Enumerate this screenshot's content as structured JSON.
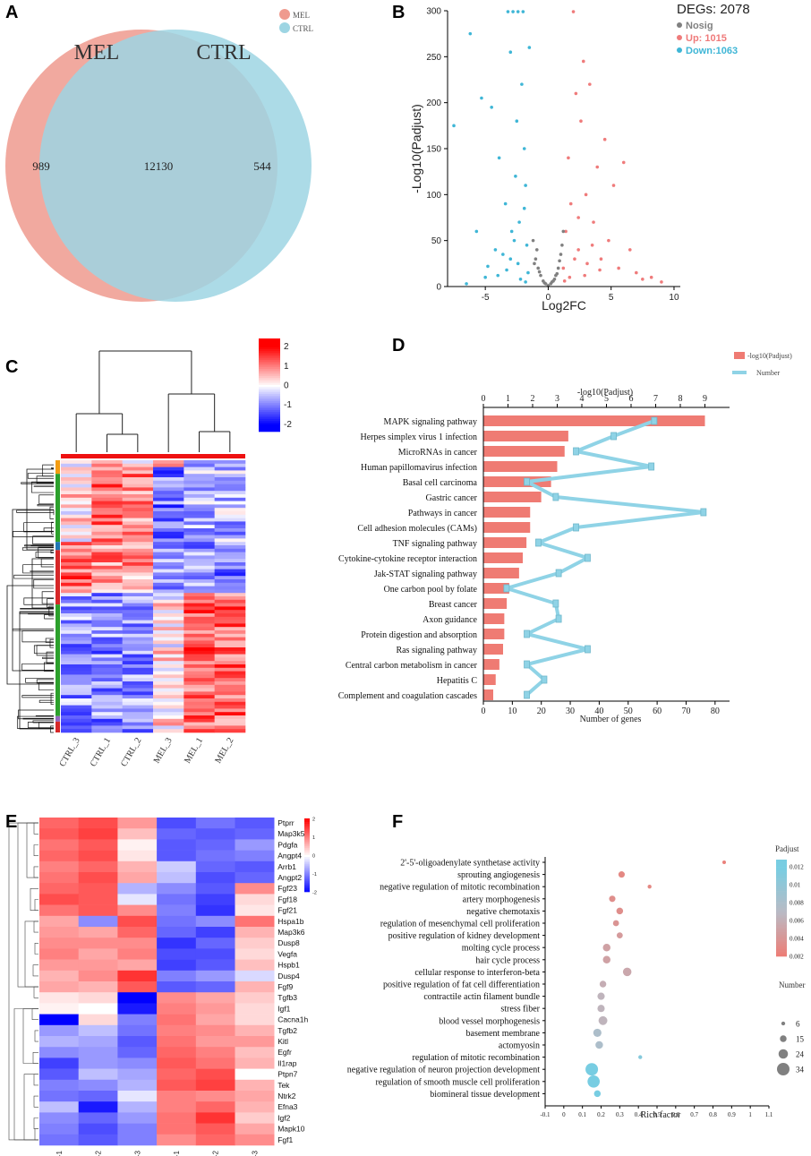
{
  "panels": {
    "a": "A",
    "b": "B",
    "c": "C",
    "d": "D",
    "e": "E",
    "f": "F"
  },
  "venn": {
    "title_left": "MEL",
    "title_right": "CTRL",
    "legend": [
      "MEL",
      "CTRL"
    ],
    "only_left": "989",
    "overlap": "12130",
    "only_right": "544",
    "colors": {
      "left": "#ef9a8e",
      "right": "#9dd5e3"
    }
  },
  "chart_data": [
    {
      "type": "scatter",
      "panel": "B",
      "title": "DEGs: 2078",
      "xlabel": "Log2FC",
      "ylabel": "-Log10(Padjust)",
      "xlim": [
        -8,
        10.5
      ],
      "ylim": [
        0,
        300
      ],
      "xticks": [
        "-5",
        "0",
        "5",
        "10"
      ],
      "yticks": [
        "0",
        "50",
        "100",
        "150",
        "200",
        "250",
        "300"
      ],
      "legend": [
        {
          "label": "Nosig",
          "color": "#808080"
        },
        {
          "label": "Up: 1015",
          "color": "#ef7b7b"
        },
        {
          "label": "Down:1063",
          "color": "#3fb6d6"
        }
      ],
      "series": [
        {
          "name": "Down",
          "color": "#3fb6d6",
          "x": [
            -7.5,
            -6.2,
            -5.7,
            -5.3,
            -4.8,
            -4.5,
            -4.2,
            -3.9,
            -3.6,
            -3.4,
            -3.2,
            -3.0,
            -2.9,
            -2.8,
            -2.6,
            -2.5,
            -2.4,
            -2.3,
            -2.1,
            -2.0,
            -1.9,
            -1.8,
            -1.7,
            -1.6,
            -1.5,
            -4.0,
            -3.0,
            -2.2,
            -1.8,
            -5.0,
            -6.5,
            -3.3,
            -2.7,
            -1.9,
            -2.4
          ],
          "y": [
            175,
            275,
            60,
            205,
            22,
            195,
            40,
            140,
            35,
            90,
            299,
            255,
            60,
            299,
            120,
            180,
            299,
            70,
            220,
            299,
            150,
            110,
            45,
            15,
            260,
            12,
            30,
            8,
            5,
            10,
            3,
            18,
            50,
            85,
            25
          ]
        },
        {
          "name": "Up",
          "color": "#ef7b7b",
          "x": [
            1.2,
            1.4,
            1.6,
            1.8,
            2.0,
            2.2,
            2.4,
            2.6,
            2.8,
            3.0,
            3.3,
            3.6,
            3.9,
            4.2,
            4.5,
            4.8,
            5.2,
            5.6,
            6.0,
            6.5,
            7.0,
            7.5,
            8.2,
            9.0,
            2.1,
            2.4,
            3.5,
            4.1,
            1.7,
            2.9,
            3.1,
            1.3
          ],
          "y": [
            20,
            60,
            140,
            90,
            299,
            210,
            40,
            180,
            245,
            100,
            220,
            70,
            130,
            30,
            160,
            50,
            110,
            20,
            135,
            40,
            15,
            8,
            10,
            5,
            30,
            75,
            45,
            18,
            10,
            12,
            25,
            6
          ]
        },
        {
          "name": "Nosig",
          "color": "#808080",
          "x": [
            -1.2,
            -1.0,
            -0.8,
            -0.6,
            -0.4,
            -0.2,
            0,
            0.2,
            0.4,
            0.6,
            0.8,
            1.0,
            1.2,
            -0.9,
            0.5,
            -0.3,
            0.3,
            0.9,
            -0.7,
            0.7,
            1.1,
            -1.1
          ],
          "y": [
            50,
            30,
            20,
            12,
            6,
            3,
            1,
            3,
            6,
            12,
            20,
            35,
            60,
            40,
            8,
            4,
            5,
            28,
            16,
            14,
            45,
            25
          ]
        }
      ]
    },
    {
      "type": "bar",
      "panel": "D",
      "title": "-log10(Padjust)",
      "xlabel": "Number of genes",
      "xlim_top": [
        0,
        10
      ],
      "xlim_bottom": [
        0,
        85
      ],
      "top_ticks": [
        "0",
        "1",
        "2",
        "3",
        "4",
        "5",
        "6",
        "7",
        "8",
        "9"
      ],
      "bottom_ticks": [
        "0",
        "10",
        "20",
        "30",
        "40",
        "50",
        "60",
        "70",
        "80"
      ],
      "legend": [
        {
          "label": "-log10(Padjust)",
          "color": "#ef7b73"
        },
        {
          "label": "Number",
          "color": "#8fd3e6"
        }
      ],
      "categories": [
        "MAPK signaling pathway",
        "Herpes simplex virus 1 infection",
        "MicroRNAs in cancer",
        "Human papillomavirus infection",
        "Basal cell carcinoma",
        "Gastric cancer",
        "Pathways in cancer",
        "Cell adhesion molecules (CAMs)",
        "TNF signaling pathway",
        "Cytokine-cytokine receptor interaction",
        "Jak-STAT signaling pathway",
        "One carbon pool by folate",
        "Breast cancer",
        "Axon guidance",
        "Protein digestion and absorption",
        "Ras signaling pathway",
        "Central carbon metabolism in cancer",
        "Hepatitis C",
        "Complement and coagulation cascades"
      ],
      "series": [
        {
          "name": "-log10(Padjust)",
          "values": [
            9.0,
            3.45,
            3.3,
            3.0,
            2.75,
            2.35,
            1.9,
            1.9,
            1.75,
            1.6,
            1.45,
            1.05,
            0.95,
            0.85,
            0.85,
            0.8,
            0.65,
            0.5,
            0.4
          ]
        },
        {
          "name": "Number",
          "values": [
            59,
            45,
            32,
            58,
            15,
            25,
            76,
            32,
            19,
            36,
            26,
            8,
            25,
            26,
            15,
            36,
            15,
            21,
            15
          ]
        }
      ]
    },
    {
      "type": "scatter",
      "panel": "F",
      "xlabel": "Rich factor",
      "xlim": [
        -0.1,
        1.1
      ],
      "xticks": [
        "-0.1",
        "0",
        "0.1",
        "0.2",
        "0.3",
        "0.4",
        "0.5",
        "0.6",
        "0.7",
        "0.8",
        "0.9",
        "1",
        "1.1"
      ],
      "legend_padjust_title": "Padjust",
      "legend_padjust_ticks": [
        "0.012",
        "0.01",
        "0.008",
        "0.006",
        "0.004",
        "0.002"
      ],
      "legend_number_title": "Number",
      "legend_number_ticks": [
        "6",
        "15",
        "24",
        "34"
      ],
      "categories": [
        "2'-5'-oligoadenylate synthetase activity",
        "sprouting angiogenesis",
        "negative regulation of mitotic recombination",
        "artery morphogenesis",
        "negative chemotaxis",
        "regulation of mesenchymal cell proliferation",
        "positive regulation of kidney development",
        "molting cycle process",
        "hair cycle process",
        "cellular response to interferon-beta",
        "positive regulation of fat cell differentiation",
        "contractile actin filament bundle",
        "stress fiber",
        "blood vessel morphogenesis",
        "basement membrane",
        "actomyosin",
        "regulation of mitotic recombination",
        "negative regulation of neuron projection development",
        "regulation of smooth muscle cell proliferation",
        "biomineral tissue development"
      ],
      "rich_factor": [
        0.86,
        0.31,
        0.46,
        0.26,
        0.3,
        0.28,
        0.3,
        0.23,
        0.23,
        0.34,
        0.21,
        0.2,
        0.2,
        0.21,
        0.18,
        0.19,
        0.41,
        0.15,
        0.16,
        0.18
      ],
      "number": [
        5,
        14,
        6,
        14,
        15,
        13,
        13,
        18,
        18,
        21,
        15,
        17,
        17,
        22,
        20,
        18,
        6,
        34,
        33,
        15
      ],
      "padjust": [
        0.0025,
        0.003,
        0.003,
        0.0035,
        0.0035,
        0.004,
        0.0045,
        0.005,
        0.005,
        0.0055,
        0.006,
        0.0065,
        0.0065,
        0.0065,
        0.008,
        0.008,
        0.011,
        0.012,
        0.012,
        0.012
      ]
    }
  ],
  "heatmap_c": {
    "colorbar_ticks": [
      "2",
      "1",
      "0",
      "-1",
      "-2"
    ],
    "columns": [
      "CTRL_3",
      "CTRL_1",
      "CTRL_2",
      "MEL_3",
      "MEL_1",
      "MEL_2"
    ]
  },
  "heatmap_e": {
    "colorbar_ticks": [
      "2",
      "1",
      "0",
      "-1",
      "-2"
    ],
    "columns": [
      "CTRL-1",
      "CTRL-2",
      "CTRL-3",
      "MEL-1",
      "MEL-2",
      "MEL-3"
    ],
    "genes": [
      "Ptprr",
      "Map3k5",
      "Pdgfa",
      "Angpt4",
      "Arrb1",
      "Angpt2",
      "Fgf23",
      "Fgf18",
      "Fgf21",
      "Hspa1b",
      "Map3k6",
      "Dusp8",
      "Vegfa",
      "Hspb1",
      "Dusp4",
      "Fgf9",
      "Tgfb3",
      "Igf1",
      "Cacna1h",
      "Tgfb2",
      "Kitl",
      "Egfr",
      "Il1rap",
      "Ptpn7",
      "Tek",
      "Ntrk2",
      "Efna3",
      "Igf2",
      "Mapk10",
      "Fgf1"
    ],
    "values": [
      [
        1.2,
        1.4,
        0.8,
        -1.4,
        -1.1,
        -1.3
      ],
      [
        1.3,
        1.5,
        0.5,
        -1.2,
        -1.3,
        -1.2
      ],
      [
        1.1,
        1.3,
        0.1,
        -1.3,
        -1.2,
        -0.8
      ],
      [
        1.2,
        1.4,
        0.2,
        -1.3,
        -1.1,
        -1.0
      ],
      [
        1.0,
        1.2,
        0.6,
        -0.4,
        -1.2,
        -1.3
      ],
      [
        1.1,
        1.4,
        0.7,
        -0.5,
        -1.4,
        -1.2
      ],
      [
        1.2,
        1.3,
        -0.6,
        -0.9,
        -1.3,
        0.9
      ],
      [
        1.4,
        1.3,
        -0.2,
        -1.1,
        -1.5,
        0.3
      ],
      [
        1.1,
        1.3,
        0.9,
        -1.0,
        -1.6,
        0.2
      ],
      [
        0.7,
        -0.9,
        1.4,
        -1.1,
        -0.9,
        1.1
      ],
      [
        0.8,
        0.7,
        1.2,
        -1.2,
        -1.5,
        0.6
      ],
      [
        0.9,
        0.9,
        0.9,
        -1.6,
        -1.2,
        0.4
      ],
      [
        1.0,
        0.7,
        1.0,
        -1.4,
        -1.4,
        0.3
      ],
      [
        0.8,
        0.8,
        0.7,
        -1.5,
        -1.3,
        0.5
      ],
      [
        0.6,
        0.9,
        1.6,
        -1.0,
        -0.8,
        -0.3
      ],
      [
        0.7,
        0.6,
        1.3,
        -1.3,
        -1.2,
        0.6
      ],
      [
        0.2,
        0.3,
        -2.0,
        0.9,
        0.7,
        0.4
      ],
      [
        0.1,
        0.0,
        -1.8,
        1.0,
        0.8,
        0.3
      ],
      [
        -2.0,
        0.3,
        -1.0,
        1.1,
        0.7,
        0.3
      ],
      [
        -0.8,
        -0.5,
        -1.1,
        1.0,
        0.9,
        0.6
      ],
      [
        -0.6,
        -0.7,
        -1.3,
        1.1,
        0.8,
        0.8
      ],
      [
        -0.9,
        -0.8,
        -1.2,
        1.2,
        1.0,
        0.5
      ],
      [
        -1.5,
        -0.8,
        -0.9,
        1.3,
        1.1,
        0.6
      ],
      [
        -1.3,
        -0.5,
        -0.7,
        1.2,
        1.4,
        0.0
      ],
      [
        -1.0,
        -0.9,
        -0.6,
        1.3,
        1.5,
        0.6
      ],
      [
        -1.1,
        -1.2,
        -0.2,
        1.0,
        0.9,
        0.7
      ],
      [
        -0.5,
        -1.8,
        -0.6,
        1.0,
        1.2,
        0.6
      ],
      [
        -0.9,
        -1.2,
        -0.8,
        1.1,
        1.6,
        0.4
      ],
      [
        -1.0,
        -1.4,
        -1.0,
        1.1,
        1.3,
        0.7
      ],
      [
        -1.1,
        -1.3,
        -1.0,
        0.9,
        1.2,
        0.9
      ]
    ]
  }
}
